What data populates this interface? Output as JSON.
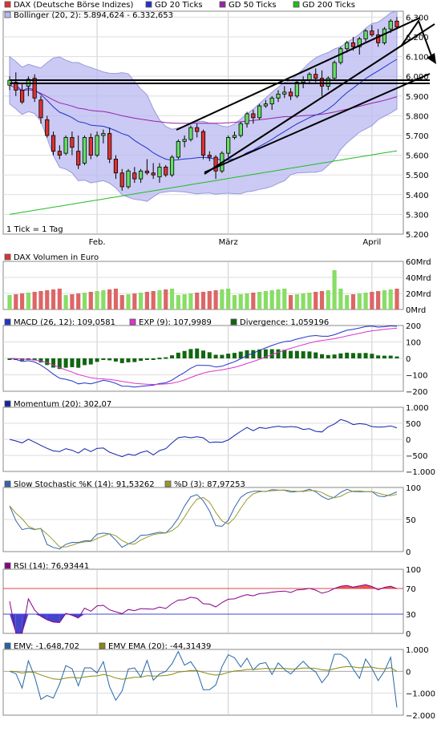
{
  "colors": {
    "candle_up": "#66dd66",
    "candle_down": "#dd3333",
    "gd20": "#2233cc",
    "gd50": "#9922aa",
    "gd200": "#22bb22",
    "bollinger": "#b8b8f0",
    "macd": "#2233cc",
    "exp": "#dd33cc",
    "divergence": "#116611",
    "momentum": "#1122aa",
    "stoch_k": "#3366aa",
    "stoch_d": "#999933",
    "rsi": "#880088",
    "rsi_fill": "#ee5555",
    "rsi_low_fill": "#4444cc",
    "emv": "#2266aa",
    "emv_ema": "#888811"
  },
  "chart_data": [
    {
      "type": "candlestick",
      "title": "DAX (Deutsche Börse Indizes)",
      "legend": [
        {
          "key": "dax",
          "label": "DAX (Deutsche Börse Indizes)"
        },
        {
          "key": "gd20",
          "label": "GD 20 Ticks"
        },
        {
          "key": "gd50",
          "label": "GD 50 Ticks"
        },
        {
          "key": "gd200",
          "label": "GD 200 Ticks"
        },
        {
          "key": "bollinger",
          "label": "Bollinger (20, 2): 5.894,624 - 6.332,653"
        }
      ],
      "note": "1 Tick = 1 Tag",
      "x_ticks": [
        {
          "i": 14,
          "label": "Feb."
        },
        {
          "i": 35,
          "label": "März"
        },
        {
          "i": 58,
          "label": "April"
        }
      ],
      "ylim": [
        5200,
        6330
      ],
      "y_ticks": [
        {
          "v": 5200,
          "label": "5.200"
        },
        {
          "v": 5300,
          "label": "5.300"
        },
        {
          "v": 5400,
          "label": "5.400"
        },
        {
          "v": 5500,
          "label": "5.500"
        },
        {
          "v": 5600,
          "label": "5.600"
        },
        {
          "v": 5700,
          "label": "5.700"
        },
        {
          "v": 5800,
          "label": "5.800"
        },
        {
          "v": 5900,
          "label": "5.900"
        },
        {
          "v": 6000,
          "label": "6.000"
        },
        {
          "v": 6100,
          "label": "6.100"
        },
        {
          "v": 6200,
          "label": "6.200"
        },
        {
          "v": 6300,
          "label": "6.300"
        }
      ],
      "ohlc": [
        [
          5955,
          6000,
          5930,
          5980
        ],
        [
          5970,
          6020,
          5900,
          5930
        ],
        [
          5930,
          5960,
          5860,
          5870
        ],
        [
          5950,
          6000,
          5900,
          5985
        ],
        [
          5990,
          6010,
          5870,
          5890
        ],
        [
          5880,
          5900,
          5760,
          5790
        ],
        [
          5780,
          5800,
          5690,
          5700
        ],
        [
          5700,
          5720,
          5600,
          5620
        ],
        [
          5620,
          5650,
          5580,
          5600
        ],
        [
          5610,
          5700,
          5600,
          5690
        ],
        [
          5690,
          5720,
          5600,
          5640
        ],
        [
          5620,
          5700,
          5530,
          5550
        ],
        [
          5560,
          5700,
          5550,
          5690
        ],
        [
          5690,
          5710,
          5580,
          5600
        ],
        [
          5600,
          5720,
          5590,
          5700
        ],
        [
          5700,
          5730,
          5660,
          5710
        ],
        [
          5710,
          5740,
          5560,
          5580
        ],
        [
          5580,
          5600,
          5480,
          5510
        ],
        [
          5510,
          5530,
          5420,
          5440
        ],
        [
          5440,
          5530,
          5430,
          5520
        ],
        [
          5510,
          5540,
          5460,
          5480
        ],
        [
          5480,
          5530,
          5460,
          5520
        ],
        [
          5520,
          5580,
          5500,
          5510
        ],
        [
          5510,
          5560,
          5480,
          5500
        ],
        [
          5490,
          5560,
          5460,
          5540
        ],
        [
          5540,
          5550,
          5490,
          5500
        ],
        [
          5500,
          5600,
          5490,
          5590
        ],
        [
          5590,
          5680,
          5580,
          5670
        ],
        [
          5670,
          5700,
          5640,
          5680
        ],
        [
          5680,
          5750,
          5670,
          5740
        ],
        [
          5740,
          5760,
          5690,
          5720
        ],
        [
          5720,
          5730,
          5580,
          5600
        ],
        [
          5600,
          5620,
          5570,
          5590
        ],
        [
          5590,
          5600,
          5480,
          5520
        ],
        [
          5520,
          5620,
          5510,
          5610
        ],
        [
          5610,
          5700,
          5590,
          5690
        ],
        [
          5690,
          5720,
          5680,
          5700
        ],
        [
          5700,
          5770,
          5690,
          5760
        ],
        [
          5760,
          5820,
          5740,
          5810
        ],
        [
          5810,
          5830,
          5760,
          5790
        ],
        [
          5790,
          5860,
          5780,
          5850
        ],
        [
          5850,
          5880,
          5840,
          5860
        ],
        [
          5860,
          5900,
          5830,
          5890
        ],
        [
          5890,
          5930,
          5870,
          5910
        ],
        [
          5910,
          5950,
          5890,
          5920
        ],
        [
          5920,
          5940,
          5880,
          5900
        ],
        [
          5900,
          5980,
          5890,
          5970
        ],
        [
          5970,
          6000,
          5940,
          5980
        ],
        [
          5980,
          6020,
          5960,
          6010
        ],
        [
          6010,
          6040,
          5970,
          5990
        ],
        [
          5990,
          6030,
          5900,
          5950
        ],
        [
          5950,
          6000,
          5930,
          5990
        ],
        [
          5990,
          6080,
          5980,
          6070
        ],
        [
          6070,
          6150,
          6060,
          6140
        ],
        [
          6140,
          6180,
          6120,
          6170
        ],
        [
          6170,
          6200,
          6130,
          6150
        ],
        [
          6150,
          6200,
          6110,
          6190
        ],
        [
          6190,
          6240,
          6170,
          6230
        ],
        [
          6230,
          6260,
          6200,
          6210
        ],
        [
          6210,
          6240,
          6150,
          6170
        ],
        [
          6170,
          6250,
          6160,
          6240
        ],
        [
          6240,
          6290,
          6220,
          6280
        ],
        [
          6280,
          6300,
          6240,
          6250
        ]
      ]
    },
    {
      "type": "bar",
      "title": "DAX Volumen in Euro",
      "ylim": [
        0,
        60
      ],
      "y_ticks": [
        {
          "v": 0,
          "label": "0Mrd"
        },
        {
          "v": 20,
          "label": "20Mrd"
        },
        {
          "v": 40,
          "label": "40Mrd"
        },
        {
          "v": 60,
          "label": "60Mrd"
        }
      ]
    },
    {
      "type": "line",
      "legend": [
        {
          "key": "macd",
          "label": "MACD (26, 12): 109,0581"
        },
        {
          "key": "exp",
          "label": "EXP (9): 107,9989"
        },
        {
          "key": "divergence",
          "label": "Divergence: 1,059196"
        }
      ],
      "ylim": [
        -200,
        200
      ],
      "y_ticks": [
        {
          "v": -200,
          "label": "−200"
        },
        {
          "v": -100,
          "label": "−100"
        },
        {
          "v": 0,
          "label": "0"
        },
        {
          "v": 100,
          "label": "100"
        },
        {
          "v": 200,
          "label": "200"
        }
      ]
    },
    {
      "type": "line",
      "legend": [
        {
          "key": "momentum",
          "label": "Momentum (20): 302,07"
        }
      ],
      "ylim": [
        -1000,
        1000
      ],
      "y_ticks": [
        {
          "v": -1000,
          "label": "−1.000"
        },
        {
          "v": -500,
          "label": "−500"
        },
        {
          "v": 0,
          "label": "0"
        },
        {
          "v": 500,
          "label": "500"
        },
        {
          "v": 1000,
          "label": "1.000"
        }
      ]
    },
    {
      "type": "line",
      "legend": [
        {
          "key": "stoch_k",
          "label": "Slow Stochastic %K (14): 91,53262"
        },
        {
          "key": "stoch_d",
          "label": "%D (3): 87,97253"
        }
      ],
      "ylim": [
        0,
        100
      ],
      "y_ticks": [
        {
          "v": 0,
          "label": "0"
        },
        {
          "v": 50,
          "label": "50"
        },
        {
          "v": 100,
          "label": "100"
        }
      ]
    },
    {
      "type": "line",
      "legend": [
        {
          "key": "rsi",
          "label": "RSI (14): 76,93441"
        }
      ],
      "ylim": [
        0,
        100
      ],
      "levels": [
        70,
        30
      ],
      "y_ticks": [
        {
          "v": 0,
          "label": "0"
        },
        {
          "v": 30,
          "label": "30"
        },
        {
          "v": 70,
          "label": "70"
        },
        {
          "v": 100,
          "label": "100"
        }
      ]
    },
    {
      "type": "line",
      "legend": [
        {
          "key": "emv",
          "label": "EMV: -1.648,702"
        },
        {
          "key": "emv_ema",
          "label": "EMV EMA (20): -44,31439"
        }
      ],
      "ylim": [
        -2000,
        1000
      ],
      "y_ticks": [
        {
          "v": -2000,
          "label": "−2.000"
        },
        {
          "v": -1000,
          "label": "−1.000"
        },
        {
          "v": 0,
          "label": "0"
        },
        {
          "v": 1000,
          "label": "1.000"
        }
      ]
    }
  ]
}
